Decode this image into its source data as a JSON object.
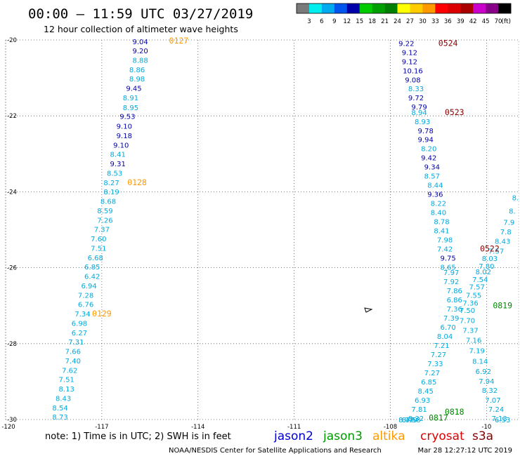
{
  "header": {
    "title": "00:00 — 11:59 UTC 03/27/2019",
    "subtitle": "12 hour collection of altimeter wave heights"
  },
  "colorbar": {
    "colors": [
      "#7a7a7a",
      "#00eeee",
      "#00aaee",
      "#0055ee",
      "#0000aa",
      "#00cc00",
      "#00a000",
      "#008000",
      "#ffff00",
      "#ffcc00",
      "#ff9900",
      "#ff0000",
      "#dd0000",
      "#aa0000",
      "#cc00cc",
      "#880088",
      "#000000"
    ],
    "labels": [
      "3",
      "6",
      "9",
      "12",
      "15",
      "18",
      "21",
      "24",
      "27",
      "30",
      "33",
      "36",
      "39",
      "42",
      "45",
      "70"
    ],
    "unit": "(ft)"
  },
  "footer": {
    "note": "note: 1) Time is in UTC; 2) SWH is in feet",
    "credit": "NOAA/NESDIS Center for Satellite Applications and Research",
    "timestamp": "Mar 28 12:27:12 UTC 2019",
    "satellites": [
      {
        "name": "jason2",
        "color": "#0000cc"
      },
      {
        "name": "jason3",
        "color": "#009900"
      },
      {
        "name": "altika",
        "color": "#ff9900"
      },
      {
        "name": "cryosat",
        "color": "#dd0000"
      },
      {
        "name": "s3a",
        "color": "#880000"
      }
    ]
  },
  "chart_data": {
    "type": "scatter",
    "xlim": [
      -120,
      -104
    ],
    "ylim": [
      -30,
      -20
    ],
    "x_ticks": [
      "-120",
      "-117",
      "-114",
      "-111",
      "-108",
      "-10"
    ],
    "y_ticks": [
      "-20",
      "-22",
      "-24",
      "-26",
      "-28",
      "-30"
    ],
    "grid": true,
    "color_light": "#00aadd",
    "color_dark": "#0000aa",
    "tracks": [
      {
        "values": [
          {
            "x": -115.8,
            "y": -20.04,
            "v": "9.04",
            "c": "d"
          },
          {
            "x": -115.8,
            "y": -20.28,
            "v": "9.20",
            "c": "d"
          },
          {
            "x": -115.8,
            "y": -20.53,
            "v": "8.88",
            "c": "l"
          },
          {
            "x": -115.9,
            "y": -20.78,
            "v": "8.86",
            "c": "l"
          },
          {
            "x": -115.9,
            "y": -21.02,
            "v": "8.98",
            "c": "l"
          },
          {
            "x": -116.0,
            "y": -21.27,
            "v": "9.45",
            "c": "d"
          },
          {
            "x": -116.1,
            "y": -21.52,
            "v": "8.91",
            "c": "l"
          },
          {
            "x": -116.1,
            "y": -21.77,
            "v": "8.95",
            "c": "l"
          },
          {
            "x": -116.2,
            "y": -22.01,
            "v": "9.53",
            "c": "d"
          },
          {
            "x": -116.3,
            "y": -22.26,
            "v": "9.10",
            "c": "d"
          },
          {
            "x": -116.3,
            "y": -22.51,
            "v": "9.18",
            "c": "d"
          },
          {
            "x": -116.4,
            "y": -22.76,
            "v": "9.10",
            "c": "d"
          },
          {
            "x": -116.5,
            "y": -23.0,
            "v": "8.41",
            "c": "l"
          },
          {
            "x": -116.5,
            "y": -23.25,
            "v": "9.31",
            "c": "d"
          },
          {
            "x": -116.6,
            "y": -23.5,
            "v": "8.53",
            "c": "l"
          },
          {
            "x": -116.7,
            "y": -23.75,
            "v": "8.27",
            "c": "l"
          },
          {
            "x": -116.7,
            "y": -23.99,
            "v": "8.19",
            "c": "l"
          },
          {
            "x": -116.8,
            "y": -24.24,
            "v": "8.68",
            "c": "l"
          },
          {
            "x": -116.9,
            "y": -24.49,
            "v": "8.59",
            "c": "l"
          },
          {
            "x": -116.9,
            "y": -24.74,
            "v": "7.26",
            "c": "l"
          },
          {
            "x": -117.0,
            "y": -24.98,
            "v": "7.37",
            "c": "l"
          },
          {
            "x": -117.1,
            "y": -25.23,
            "v": "7.60",
            "c": "l"
          },
          {
            "x": -117.1,
            "y": -25.48,
            "v": "7.51",
            "c": "l"
          },
          {
            "x": -117.2,
            "y": -25.73,
            "v": "6.68",
            "c": "l"
          },
          {
            "x": -117.3,
            "y": -25.97,
            "v": "6.85",
            "c": "l"
          },
          {
            "x": -117.3,
            "y": -26.22,
            "v": "6.42",
            "c": "l"
          },
          {
            "x": -117.4,
            "y": -26.47,
            "v": "6.94",
            "c": "l"
          },
          {
            "x": -117.5,
            "y": -26.72,
            "v": "7.28",
            "c": "l"
          },
          {
            "x": -117.5,
            "y": -26.96,
            "v": "6.76",
            "c": "l"
          },
          {
            "x": -117.6,
            "y": -27.21,
            "v": "7.34",
            "c": "l"
          },
          {
            "x": -117.7,
            "y": -27.46,
            "v": "6.98",
            "c": "l"
          },
          {
            "x": -117.7,
            "y": -27.71,
            "v": "6.27",
            "c": "l"
          },
          {
            "x": -117.8,
            "y": -27.95,
            "v": "7.31",
            "c": "l"
          },
          {
            "x": -117.9,
            "y": -28.2,
            "v": "7.66",
            "c": "l"
          },
          {
            "x": -117.9,
            "y": -28.45,
            "v": "7.40",
            "c": "l"
          },
          {
            "x": -118.0,
            "y": -28.7,
            "v": "7.62",
            "c": "l"
          },
          {
            "x": -118.1,
            "y": -28.94,
            "v": "7.51",
            "c": "l"
          },
          {
            "x": -118.1,
            "y": -29.19,
            "v": "8.13",
            "c": "l"
          },
          {
            "x": -118.2,
            "y": -29.44,
            "v": "8.43",
            "c": "l"
          },
          {
            "x": -118.3,
            "y": -29.69,
            "v": "8.54",
            "c": "l"
          },
          {
            "x": -118.3,
            "y": -29.93,
            "v": "8.73",
            "c": "l"
          }
        ]
      },
      {
        "values": [
          {
            "x": -107.5,
            "y": -20.08,
            "v": "9.22",
            "c": "d"
          },
          {
            "x": -107.4,
            "y": -20.32,
            "v": "9.12",
            "c": "d"
          },
          {
            "x": -107.4,
            "y": -20.56,
            "v": "9.12",
            "c": "d"
          },
          {
            "x": -107.3,
            "y": -20.8,
            "v": "10.16",
            "c": "d"
          },
          {
            "x": -107.3,
            "y": -21.04,
            "v": "9.08",
            "c": "d"
          },
          {
            "x": -107.2,
            "y": -21.28,
            "v": "8.33",
            "c": "l"
          },
          {
            "x": -107.2,
            "y": -21.52,
            "v": "9.72",
            "c": "d"
          },
          {
            "x": -107.1,
            "y": -21.76,
            "v": "9.79",
            "c": "d"
          },
          {
            "x": -107.1,
            "y": -21.9,
            "v": "8.94",
            "c": "l"
          },
          {
            "x": -107.0,
            "y": -22.14,
            "v": "8.93",
            "c": "l"
          },
          {
            "x": -106.9,
            "y": -22.38,
            "v": "9.78",
            "c": "d"
          },
          {
            "x": -106.9,
            "y": -22.62,
            "v": "9.94",
            "c": "d"
          },
          {
            "x": -106.8,
            "y": -22.86,
            "v": "8.20",
            "c": "l"
          },
          {
            "x": -106.8,
            "y": -23.1,
            "v": "9.42",
            "c": "d"
          },
          {
            "x": -106.7,
            "y": -23.34,
            "v": "9.34",
            "c": "d"
          },
          {
            "x": -106.7,
            "y": -23.58,
            "v": "8.57",
            "c": "l"
          },
          {
            "x": -106.6,
            "y": -23.82,
            "v": "8.44",
            "c": "l"
          },
          {
            "x": -106.6,
            "y": -24.06,
            "v": "9.36",
            "c": "d"
          },
          {
            "x": -106.5,
            "y": -24.3,
            "v": "8.22",
            "c": "l"
          },
          {
            "x": -106.5,
            "y": -24.54,
            "v": "8.40",
            "c": "l"
          },
          {
            "x": -106.4,
            "y": -24.78,
            "v": "8.78",
            "c": "l"
          },
          {
            "x": -106.4,
            "y": -25.02,
            "v": "8.41",
            "c": "l"
          },
          {
            "x": -106.3,
            "y": -25.26,
            "v": "7.98",
            "c": "l"
          },
          {
            "x": -106.3,
            "y": -25.5,
            "v": "7.42",
            "c": "l"
          },
          {
            "x": -106.2,
            "y": -25.74,
            "v": "9.75",
            "c": "d"
          },
          {
            "x": -106.2,
            "y": -25.98,
            "v": "8.65",
            "c": "l"
          },
          {
            "x": -106.1,
            "y": -26.12,
            "v": "7.97",
            "c": "l"
          },
          {
            "x": -106.1,
            "y": -26.36,
            "v": "7.92",
            "c": "l"
          },
          {
            "x": -106.0,
            "y": -26.6,
            "v": "7.86",
            "c": "l"
          },
          {
            "x": -106.0,
            "y": -26.84,
            "v": "6.86",
            "c": "l"
          },
          {
            "x": -106.0,
            "y": -27.08,
            "v": "7.36",
            "c": "l"
          },
          {
            "x": -106.1,
            "y": -27.32,
            "v": "7.39",
            "c": "l"
          },
          {
            "x": -106.2,
            "y": -27.56,
            "v": "6.70",
            "c": "l"
          },
          {
            "x": -106.3,
            "y": -27.8,
            "v": "8.04",
            "c": "l"
          },
          {
            "x": -106.4,
            "y": -28.04,
            "v": "7.21",
            "c": "l"
          },
          {
            "x": -106.5,
            "y": -28.28,
            "v": "7.27",
            "c": "l"
          },
          {
            "x": -106.6,
            "y": -28.52,
            "v": "7.33",
            "c": "l"
          },
          {
            "x": -106.7,
            "y": -28.76,
            "v": "7.27",
            "c": "l"
          },
          {
            "x": -106.8,
            "y": -29.0,
            "v": "6.85",
            "c": "l"
          },
          {
            "x": -106.9,
            "y": -29.24,
            "v": "8.45",
            "c": "l"
          },
          {
            "x": -107.0,
            "y": -29.48,
            "v": "6.93",
            "c": "l"
          },
          {
            "x": -107.1,
            "y": -29.72,
            "v": "7.81",
            "c": "l"
          },
          {
            "x": -107.2,
            "y": -29.96,
            "v": "8.32",
            "c": "l"
          },
          {
            "x": -107.3,
            "y": -30.0,
            "v": "7.58",
            "c": "l"
          },
          {
            "x": -107.4,
            "y": -30.0,
            "v": "8.79",
            "c": "l"
          },
          {
            "x": -107.5,
            "y": -30.0,
            "v": "8.47",
            "c": "l"
          }
        ]
      },
      {
        "values": [
          {
            "x": -104.1,
            "y": -24.15,
            "v": "8.",
            "c": "l"
          },
          {
            "x": -104.2,
            "y": -24.5,
            "v": "8.",
            "c": "l"
          },
          {
            "x": -104.3,
            "y": -24.8,
            "v": "7.9",
            "c": "l"
          },
          {
            "x": -104.4,
            "y": -25.05,
            "v": "7.8",
            "c": "l"
          },
          {
            "x": -104.5,
            "y": -25.3,
            "v": "8.43",
            "c": "l"
          },
          {
            "x": -104.7,
            "y": -25.55,
            "v": "7.57",
            "c": "l"
          },
          {
            "x": -104.9,
            "y": -25.75,
            "v": "8.03",
            "c": "l"
          },
          {
            "x": -105.0,
            "y": -25.95,
            "v": "7.80",
            "c": "l"
          },
          {
            "x": -105.1,
            "y": -26.1,
            "v": "8.02",
            "c": "l"
          },
          {
            "x": -105.2,
            "y": -26.3,
            "v": "7.54",
            "c": "l"
          },
          {
            "x": -105.3,
            "y": -26.5,
            "v": "7.57",
            "c": "l"
          },
          {
            "x": -105.4,
            "y": -26.72,
            "v": "7.55",
            "c": "l"
          },
          {
            "x": -105.5,
            "y": -26.92,
            "v": "7.36",
            "c": "l"
          },
          {
            "x": -105.6,
            "y": -27.12,
            "v": "7.50",
            "c": "l"
          },
          {
            "x": -105.6,
            "y": -27.38,
            "v": "7.70",
            "c": "l"
          },
          {
            "x": -105.5,
            "y": -27.64,
            "v": "7.37",
            "c": "l"
          },
          {
            "x": -105.4,
            "y": -27.9,
            "v": "7.16",
            "c": "l"
          },
          {
            "x": -105.3,
            "y": -28.18,
            "v": "7.19",
            "c": "l"
          },
          {
            "x": -105.2,
            "y": -28.46,
            "v": "8.14",
            "c": "l"
          },
          {
            "x": -105.1,
            "y": -28.72,
            "v": "6.92",
            "c": "l"
          },
          {
            "x": -105.0,
            "y": -28.98,
            "v": "7.94",
            "c": "l"
          },
          {
            "x": -104.9,
            "y": -29.22,
            "v": "8.32",
            "c": "l"
          },
          {
            "x": -104.8,
            "y": -29.48,
            "v": "7.07",
            "c": "l"
          },
          {
            "x": -104.7,
            "y": -29.72,
            "v": "7.24",
            "c": "l"
          },
          {
            "x": -104.6,
            "y": -29.96,
            "v": "7.13",
            "c": "l"
          },
          {
            "x": -104.5,
            "y": -30.0,
            "v": "6.53",
            "c": "l"
          }
        ]
      }
    ],
    "pass_labels": [
      {
        "x": -114.6,
        "y": -20.02,
        "text": "0127",
        "color": "#ff9900"
      },
      {
        "x": -115.9,
        "y": -23.75,
        "text": "0128",
        "color": "#ff9900"
      },
      {
        "x": -117.0,
        "y": -27.21,
        "text": "0129",
        "color": "#ff9900"
      },
      {
        "x": -106.2,
        "y": -20.08,
        "text": "0524",
        "color": "#880000"
      },
      {
        "x": -106.0,
        "y": -21.9,
        "text": "0523",
        "color": "#880000"
      },
      {
        "x": -104.9,
        "y": -25.5,
        "text": "0522",
        "color": "#880000"
      },
      {
        "x": -104.5,
        "y": -27.0,
        "text": "0819",
        "color": "#008800"
      },
      {
        "x": -106.0,
        "y": -29.8,
        "text": "0818",
        "color": "#008800"
      },
      {
        "x": -106.5,
        "y": -29.95,
        "text": "0817",
        "color": "#008800"
      }
    ]
  }
}
